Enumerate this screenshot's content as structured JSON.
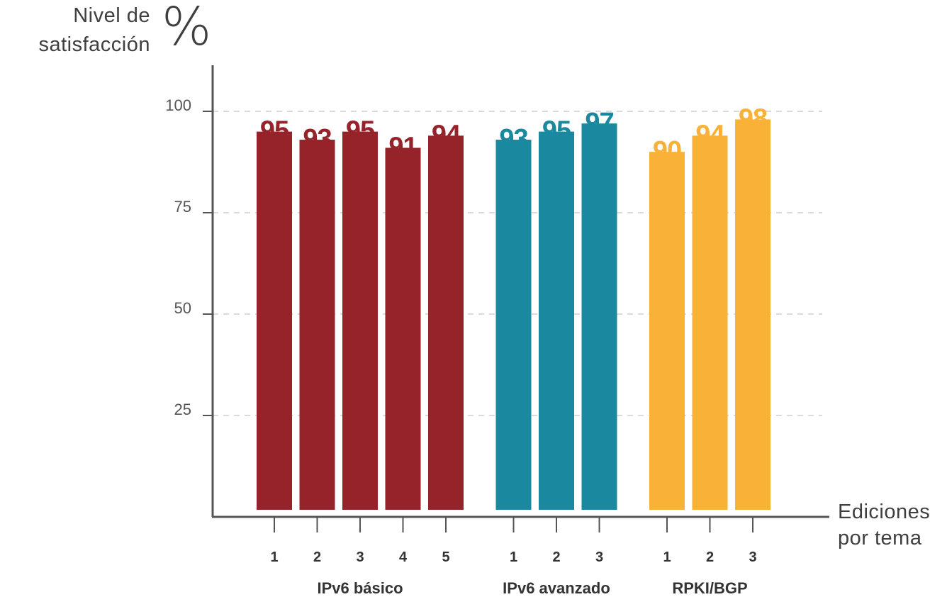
{
  "chart_data": {
    "type": "bar",
    "y_axis_label": [
      "Nivel de",
      "satisfacción"
    ],
    "y_unit": "%",
    "x_axis_label": [
      "Ediciones",
      "por tema"
    ],
    "ylim": [
      0,
      110
    ],
    "yticks": [
      25,
      50,
      75,
      100
    ],
    "grid": "horizontal dashed",
    "groups": [
      {
        "name": "IPv6 básico",
        "color": "#96222a",
        "categories": [
          "1",
          "2",
          "3",
          "4",
          "5"
        ],
        "values": [
          95,
          93,
          95,
          91,
          94
        ]
      },
      {
        "name": "IPv6 avanzado",
        "color": "#1a889f",
        "categories": [
          "1",
          "2",
          "3"
        ],
        "values": [
          93,
          95,
          97
        ]
      },
      {
        "name": "RPKI/BGP",
        "color": "#f9b138",
        "categories": [
          "1",
          "2",
          "3"
        ],
        "values": [
          90,
          94,
          98
        ]
      }
    ]
  }
}
